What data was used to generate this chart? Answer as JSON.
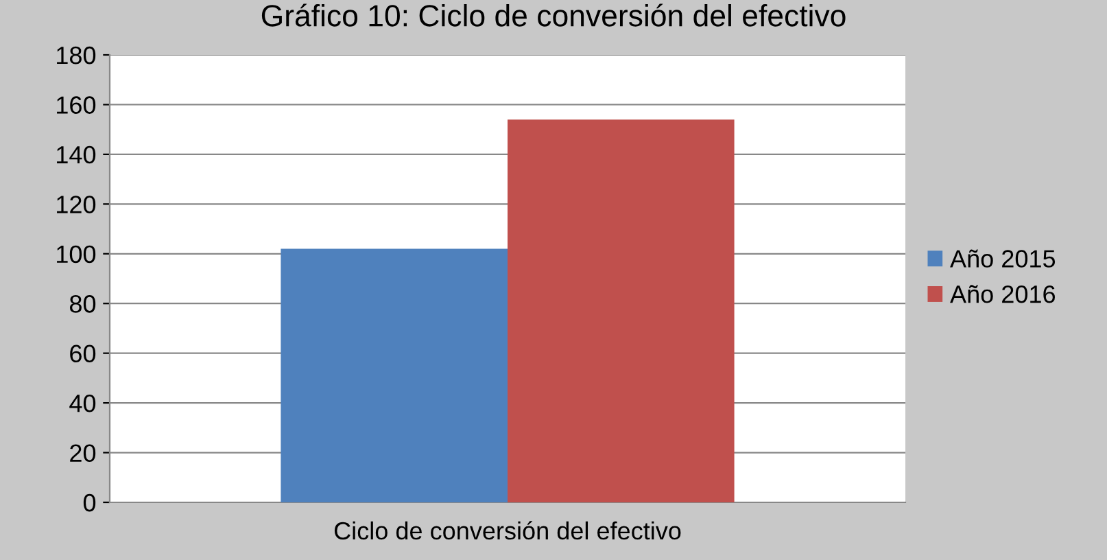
{
  "chart_data": {
    "type": "bar",
    "title": "Gráfico 10: Ciclo de conversión del efectivo",
    "categories": [
      "Ciclo de conversión del efectivo"
    ],
    "series": [
      {
        "name": "Año 2015",
        "color": "#4f81bd",
        "values": [
          102
        ]
      },
      {
        "name": "Año 2016",
        "color": "#c0504d",
        "values": [
          154
        ]
      }
    ],
    "ylim": [
      0,
      180
    ],
    "yticks": [
      0,
      20,
      40,
      60,
      80,
      100,
      120,
      140,
      160,
      180
    ],
    "grid": "y",
    "legend": "right"
  }
}
